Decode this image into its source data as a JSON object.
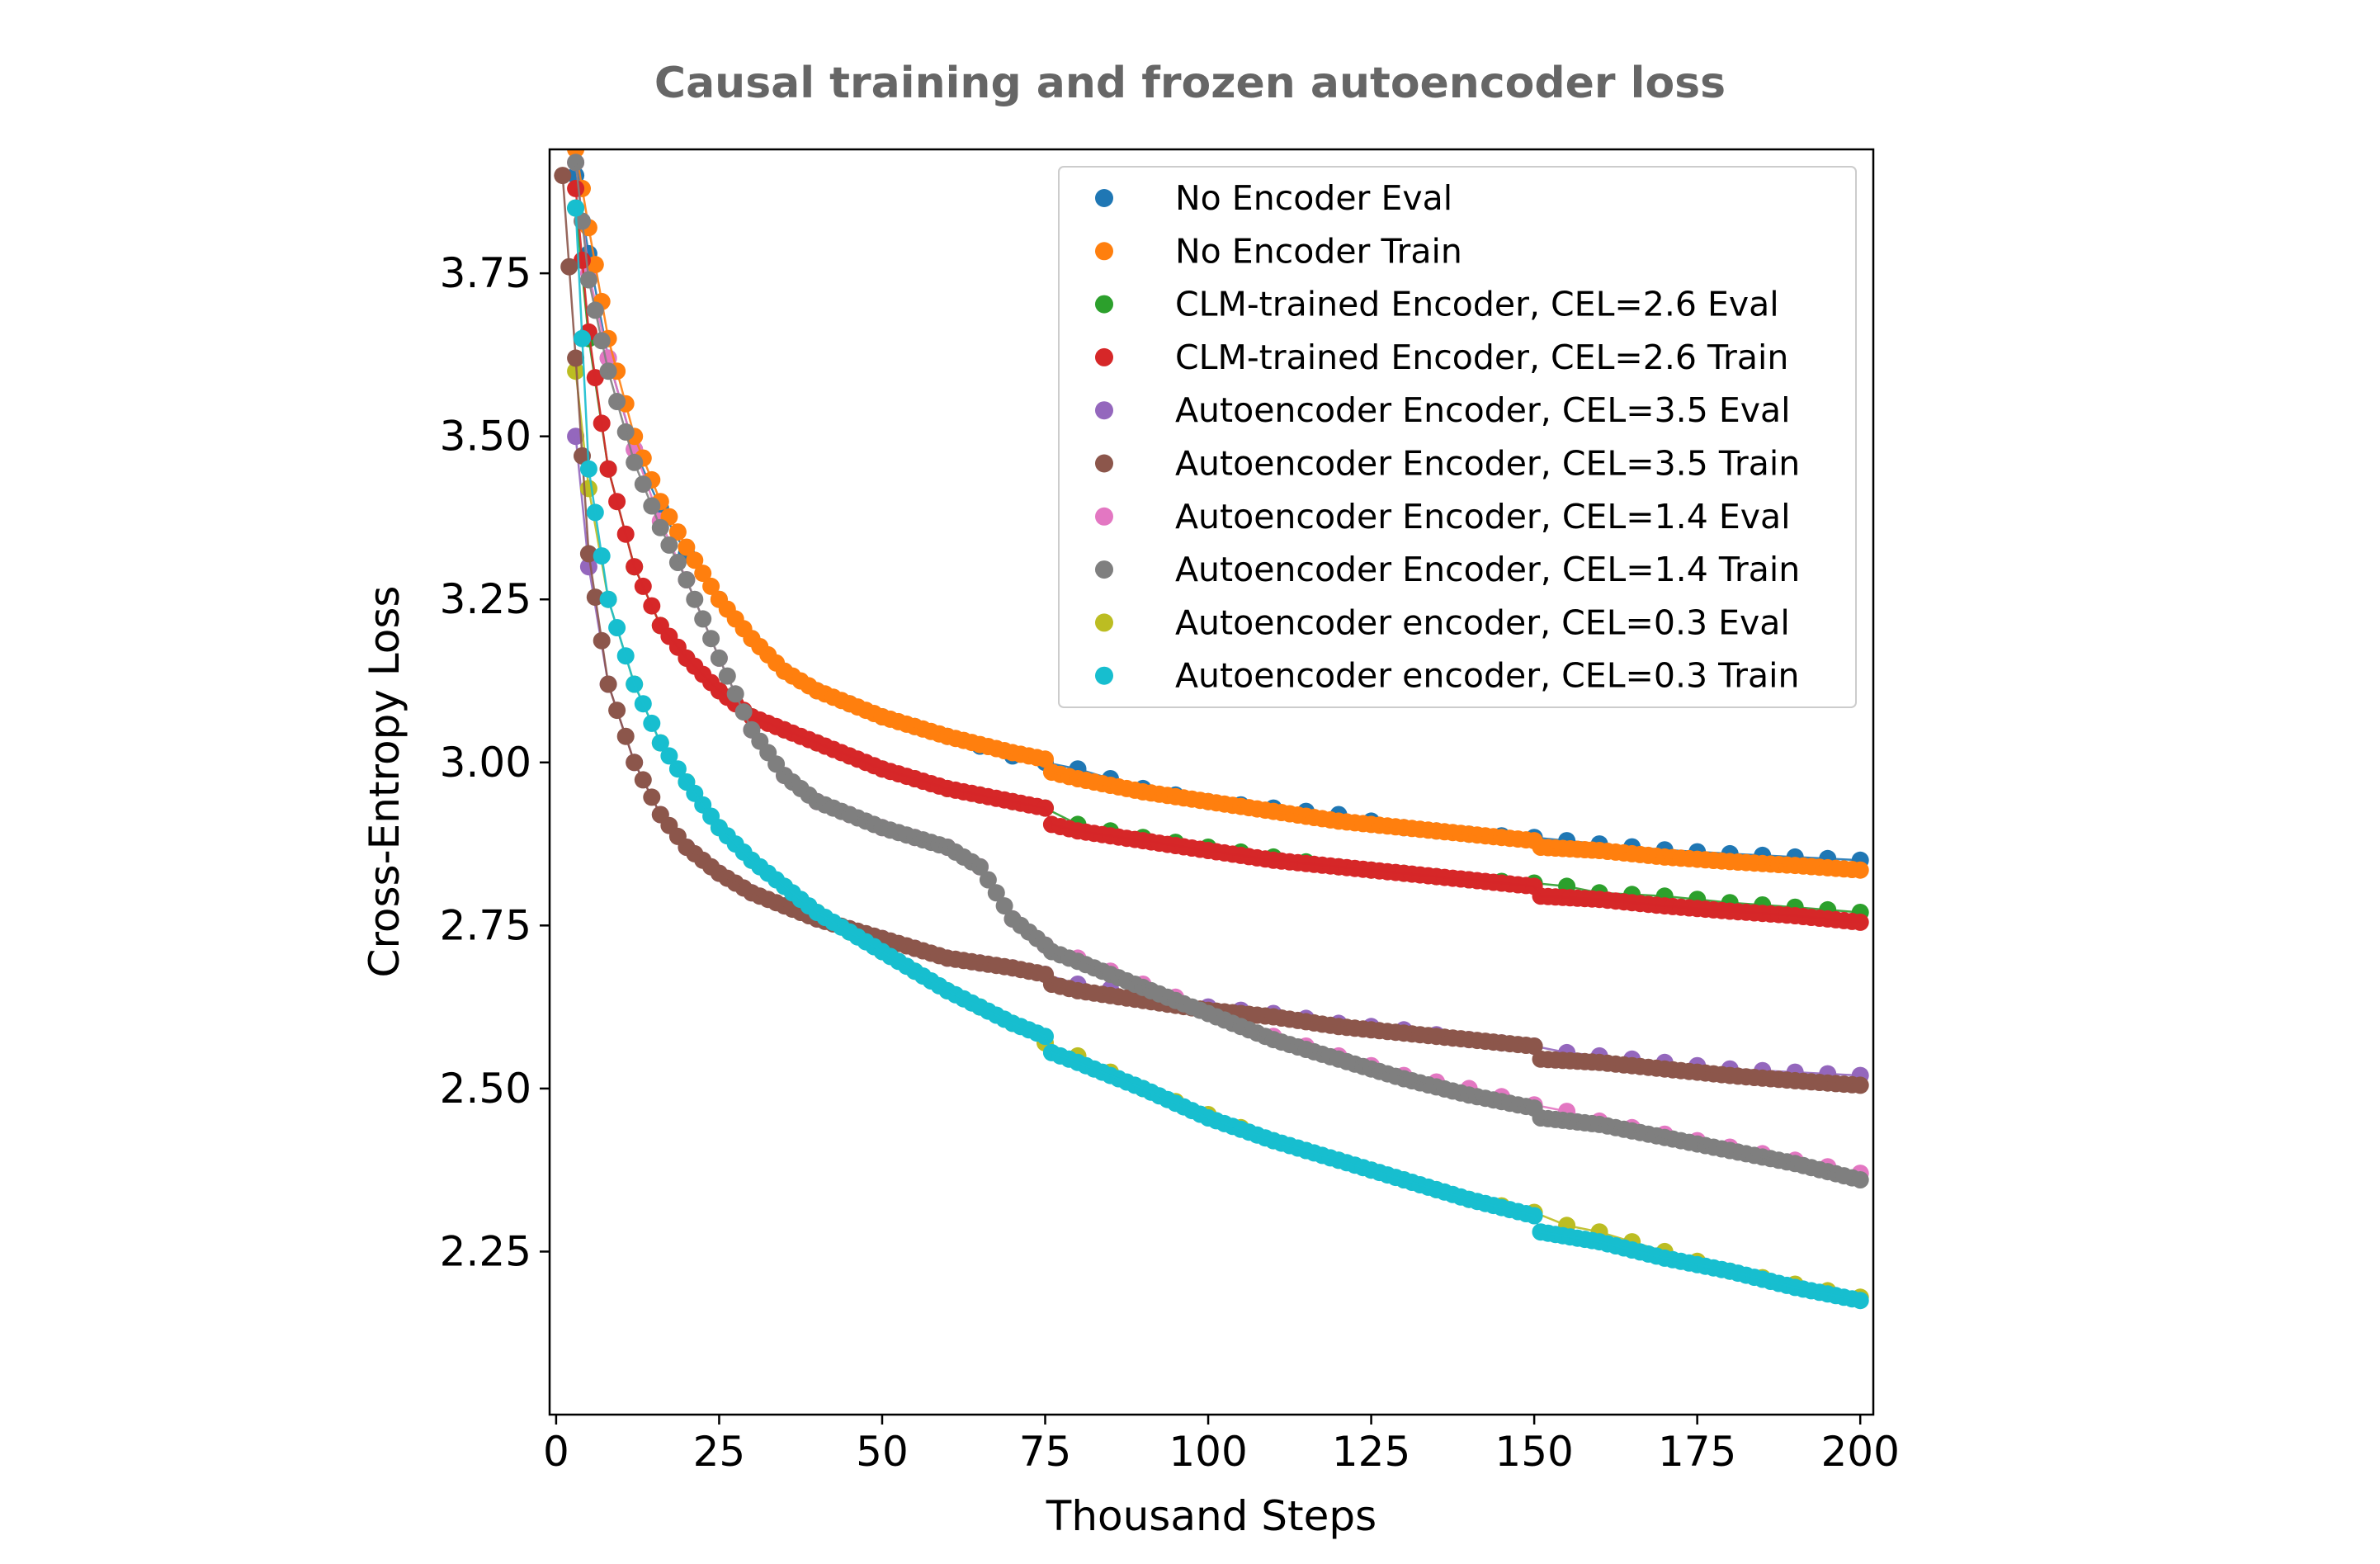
{
  "chart_data": {
    "type": "scatter",
    "title": "Causal training and frozen autoencoder loss",
    "xlabel": "Thousand Steps",
    "ylabel": "Cross-Entropy Loss",
    "xlim": [
      -1,
      202
    ],
    "ylim": [
      2.0,
      3.94
    ],
    "xticks": [
      0,
      25,
      50,
      75,
      100,
      125,
      150,
      175,
      200
    ],
    "xtick_labels": [
      "0",
      "25",
      "50",
      "75",
      "100",
      "125",
      "150",
      "175",
      "200"
    ],
    "yticks": [
      2.25,
      2.5,
      2.75,
      3.0,
      3.25,
      3.5,
      3.75
    ],
    "ytick_labels": [
      "2.25",
      "2.50",
      "2.75",
      "3.00",
      "3.25",
      "3.50",
      "3.75"
    ],
    "grid": false,
    "legend_position": "top-right",
    "series": [
      {
        "name": "No Encoder Eval",
        "role": "eval",
        "color": "#1f77b4",
        "x": [
          3,
          5,
          8,
          12,
          16,
          20,
          25,
          30,
          35,
          40,
          50,
          60,
          70,
          75,
          80,
          90,
          100,
          110,
          120,
          130,
          140,
          150,
          155,
          160,
          170,
          180,
          190,
          200
        ],
        "y": [
          3.9,
          3.78,
          3.62,
          3.48,
          3.39,
          3.32,
          3.25,
          3.19,
          3.14,
          3.11,
          3.07,
          3.04,
          3.01,
          3.0,
          2.99,
          2.96,
          2.94,
          2.93,
          2.92,
          2.9,
          2.89,
          2.885,
          2.88,
          2.875,
          2.866,
          2.86,
          2.855,
          2.85
        ]
      },
      {
        "name": "No Encoder Train",
        "role": "train",
        "color": "#ff7f0e",
        "x": [
          3,
          5,
          8,
          12,
          16,
          20,
          25,
          30,
          35,
          40,
          50,
          60,
          70,
          75,
          76,
          80,
          90,
          100,
          110,
          120,
          130,
          140,
          150,
          151,
          160,
          170,
          180,
          190,
          200
        ],
        "y": [
          3.94,
          3.82,
          3.65,
          3.5,
          3.4,
          3.33,
          3.25,
          3.19,
          3.14,
          3.11,
          3.07,
          3.04,
          3.015,
          3.005,
          2.985,
          2.975,
          2.955,
          2.94,
          2.925,
          2.91,
          2.9,
          2.89,
          2.88,
          2.87,
          2.865,
          2.855,
          2.848,
          2.842,
          2.835
        ]
      },
      {
        "name": "CLM-trained Encoder, CEL=2.6 Eval",
        "role": "eval",
        "color": "#2ca02c",
        "x": [
          3,
          5,
          8,
          12,
          16,
          20,
          25,
          30,
          40,
          50,
          60,
          70,
          75,
          80,
          90,
          100,
          110,
          120,
          130,
          140,
          150,
          155,
          160,
          170,
          180,
          190,
          200
        ],
        "y": [
          3.85,
          3.65,
          3.45,
          3.3,
          3.21,
          3.16,
          3.11,
          3.07,
          3.03,
          2.99,
          2.96,
          2.94,
          2.93,
          2.905,
          2.885,
          2.87,
          2.855,
          2.84,
          2.83,
          2.82,
          2.815,
          2.81,
          2.8,
          2.795,
          2.785,
          2.778,
          2.77
        ]
      },
      {
        "name": "CLM-trained Encoder, CEL=2.6 Train",
        "role": "train",
        "color": "#d62728",
        "x": [
          3,
          5,
          8,
          12,
          16,
          20,
          25,
          30,
          40,
          50,
          60,
          70,
          75,
          76,
          80,
          90,
          100,
          110,
          120,
          130,
          140,
          150,
          151,
          160,
          170,
          180,
          190,
          200
        ],
        "y": [
          3.88,
          3.66,
          3.45,
          3.3,
          3.21,
          3.16,
          3.11,
          3.07,
          3.03,
          2.99,
          2.96,
          2.94,
          2.93,
          2.905,
          2.895,
          2.88,
          2.865,
          2.85,
          2.84,
          2.83,
          2.82,
          2.81,
          2.795,
          2.79,
          2.78,
          2.772,
          2.765,
          2.755
        ]
      },
      {
        "name": "Autoencoder Encoder, CEL=3.5 Eval",
        "role": "eval",
        "color": "#9467bd",
        "x": [
          3,
          5,
          8,
          12,
          16,
          20,
          25,
          30,
          40,
          50,
          60,
          70,
          75,
          80,
          90,
          100,
          110,
          120,
          130,
          140,
          150,
          155,
          160,
          170,
          180,
          190,
          200
        ],
        "y": [
          3.5,
          3.3,
          3.12,
          3.0,
          2.92,
          2.87,
          2.83,
          2.8,
          2.76,
          2.73,
          2.7,
          2.685,
          2.675,
          2.66,
          2.645,
          2.625,
          2.615,
          2.6,
          2.59,
          2.575,
          2.565,
          2.555,
          2.55,
          2.54,
          2.53,
          2.525,
          2.52
        ]
      },
      {
        "name": "Autoencoder Encoder, CEL=3.5 Train",
        "role": "train",
        "color": "#8c564b",
        "x": [
          1,
          3,
          5,
          8,
          12,
          16,
          20,
          25,
          30,
          40,
          50,
          60,
          70,
          75,
          76,
          80,
          90,
          100,
          110,
          120,
          130,
          140,
          150,
          151,
          160,
          170,
          180,
          190,
          200
        ],
        "y": [
          3.9,
          3.62,
          3.32,
          3.12,
          3.0,
          2.92,
          2.87,
          2.83,
          2.8,
          2.76,
          2.73,
          2.7,
          2.685,
          2.675,
          2.66,
          2.65,
          2.635,
          2.62,
          2.61,
          2.595,
          2.585,
          2.575,
          2.565,
          2.545,
          2.54,
          2.53,
          2.52,
          2.512,
          2.505
        ]
      },
      {
        "name": "Autoencoder Encoder, CEL=1.4 Eval",
        "role": "eval",
        "color": "#e377c2",
        "x": [
          3,
          5,
          8,
          12,
          16,
          20,
          25,
          30,
          35,
          40,
          50,
          60,
          65,
          70,
          75,
          80,
          90,
          100,
          110,
          120,
          130,
          140,
          150,
          155,
          160,
          170,
          180,
          190,
          200
        ],
        "y": [
          3.92,
          3.75,
          3.62,
          3.48,
          3.37,
          3.28,
          3.16,
          3.05,
          2.98,
          2.94,
          2.9,
          2.87,
          2.84,
          2.76,
          2.72,
          2.7,
          2.66,
          2.62,
          2.58,
          2.55,
          2.52,
          2.5,
          2.475,
          2.465,
          2.45,
          2.43,
          2.41,
          2.39,
          2.37
        ]
      },
      {
        "name": "Autoencoder Encoder, CEL=1.4 Train",
        "role": "train",
        "color": "#7f7f7f",
        "x": [
          3,
          5,
          8,
          12,
          16,
          20,
          25,
          30,
          35,
          40,
          50,
          60,
          65,
          70,
          75,
          76,
          80,
          90,
          100,
          110,
          120,
          130,
          140,
          150,
          151,
          160,
          170,
          180,
          190,
          200
        ],
        "y": [
          3.92,
          3.74,
          3.6,
          3.46,
          3.36,
          3.28,
          3.16,
          3.05,
          2.98,
          2.94,
          2.9,
          2.87,
          2.84,
          2.76,
          2.72,
          2.71,
          2.695,
          2.655,
          2.615,
          2.575,
          2.545,
          2.515,
          2.49,
          2.47,
          2.455,
          2.445,
          2.425,
          2.405,
          2.385,
          2.36
        ]
      },
      {
        "name": "Autoencoder encoder, CEL=0.3 Eval",
        "role": "eval",
        "color": "#bcbd22",
        "x": [
          3,
          5,
          8,
          12,
          16,
          20,
          25,
          30,
          40,
          50,
          60,
          70,
          75,
          80,
          90,
          100,
          110,
          120,
          130,
          140,
          150,
          155,
          160,
          170,
          180,
          190,
          200
        ],
        "y": [
          3.6,
          3.42,
          3.25,
          3.12,
          3.03,
          2.97,
          2.9,
          2.85,
          2.77,
          2.71,
          2.65,
          2.6,
          2.57,
          2.55,
          2.5,
          2.46,
          2.42,
          2.39,
          2.36,
          2.33,
          2.31,
          2.29,
          2.28,
          2.25,
          2.22,
          2.2,
          2.18
        ]
      },
      {
        "name": "Autoencoder encoder, CEL=0.3 Train",
        "role": "train",
        "color": "#17becf",
        "x": [
          3,
          5,
          8,
          12,
          16,
          20,
          25,
          30,
          40,
          50,
          60,
          70,
          75,
          76,
          80,
          90,
          100,
          110,
          120,
          130,
          140,
          150,
          151,
          160,
          170,
          180,
          190,
          200
        ],
        "y": [
          3.85,
          3.45,
          3.25,
          3.12,
          3.03,
          2.97,
          2.9,
          2.85,
          2.77,
          2.71,
          2.65,
          2.6,
          2.58,
          2.555,
          2.54,
          2.5,
          2.455,
          2.42,
          2.39,
          2.36,
          2.33,
          2.305,
          2.28,
          2.265,
          2.24,
          2.22,
          2.195,
          2.175
        ]
      }
    ]
  }
}
